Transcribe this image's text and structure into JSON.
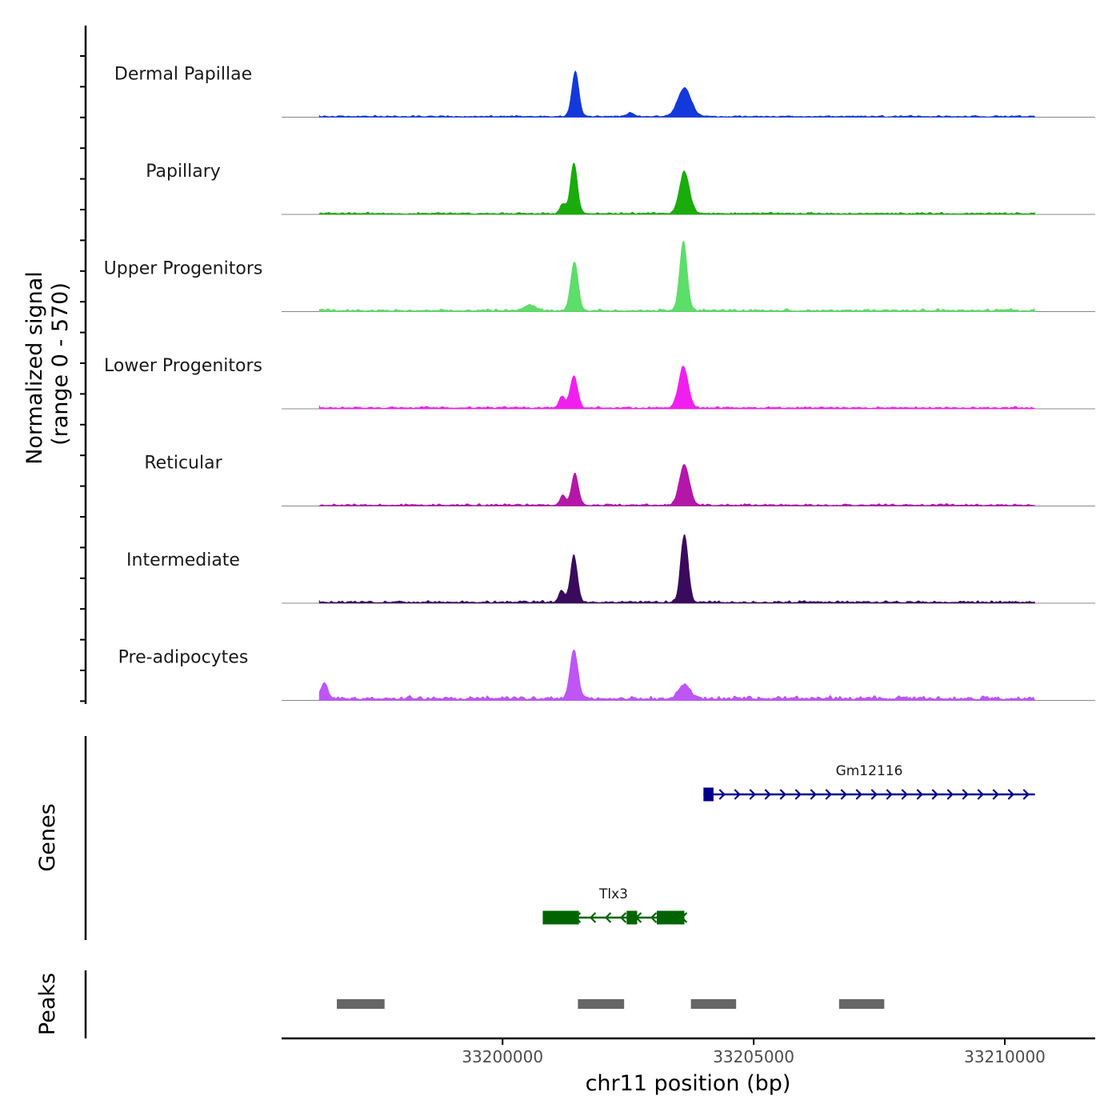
{
  "chart_data": {
    "type": "area",
    "title": "",
    "xlabel": "chr11 position (bp)",
    "ylabel_lines": [
      "Normalized signal",
      "(range 0 - 570)"
    ],
    "xlim": [
      33195600,
      33211800
    ],
    "x_ticks": [
      33200000,
      33205000,
      33210000
    ],
    "x_tick_labels": [
      "33200000",
      "33205000",
      "33210000"
    ],
    "signal_range": [
      0,
      570
    ],
    "tracks": [
      {
        "name": "Dermal Papillae",
        "color": "#1339dc",
        "peaks": [
          {
            "pos": 33201450,
            "h": 0.97,
            "w": 70
          },
          {
            "pos": 33203620,
            "h": 0.62,
            "w": 130
          },
          {
            "pos": 33202550,
            "h": 0.08,
            "w": 80
          }
        ],
        "baseline": 0.05,
        "noise_seed": 11
      },
      {
        "name": "Papillary",
        "color": "#1aab0c",
        "peaks": [
          {
            "pos": 33201420,
            "h": 1.1,
            "w": 70
          },
          {
            "pos": 33203620,
            "h": 0.9,
            "w": 100
          },
          {
            "pos": 33201200,
            "h": 0.2,
            "w": 60
          }
        ],
        "baseline": 0.06,
        "noise_seed": 23
      },
      {
        "name": "Upper Progenitors",
        "color": "#5ddd6a",
        "peaks": [
          {
            "pos": 33201430,
            "h": 1.05,
            "w": 75
          },
          {
            "pos": 33203600,
            "h": 1.5,
            "w": 75
          },
          {
            "pos": 33200550,
            "h": 0.12,
            "w": 120
          }
        ],
        "baseline": 0.07,
        "noise_seed": 37
      },
      {
        "name": "Lower Progenitors",
        "color": "#f01ff0",
        "peaks": [
          {
            "pos": 33201420,
            "h": 0.7,
            "w": 75
          },
          {
            "pos": 33203600,
            "h": 0.9,
            "w": 95
          },
          {
            "pos": 33201180,
            "h": 0.25,
            "w": 60
          }
        ],
        "baseline": 0.06,
        "noise_seed": 41
      },
      {
        "name": "Reticular",
        "color": "#b416a8",
        "peaks": [
          {
            "pos": 33201440,
            "h": 0.68,
            "w": 70
          },
          {
            "pos": 33203620,
            "h": 0.88,
            "w": 100
          },
          {
            "pos": 33201200,
            "h": 0.2,
            "w": 60
          }
        ],
        "baseline": 0.06,
        "noise_seed": 53
      },
      {
        "name": "Intermediate",
        "color": "#3a0a5c",
        "peaks": [
          {
            "pos": 33201420,
            "h": 1.0,
            "w": 70
          },
          {
            "pos": 33203620,
            "h": 1.45,
            "w": 75
          },
          {
            "pos": 33201180,
            "h": 0.25,
            "w": 60
          }
        ],
        "baseline": 0.07,
        "noise_seed": 67
      },
      {
        "name": "Pre-adipocytes",
        "color": "#bd56f5",
        "peaks": [
          {
            "pos": 33201420,
            "h": 1.05,
            "w": 80
          },
          {
            "pos": 33196450,
            "h": 0.35,
            "w": 70
          },
          {
            "pos": 33203620,
            "h": 0.3,
            "w": 120
          }
        ],
        "baseline": 0.12,
        "noise_seed": 79
      }
    ],
    "signal_span": [
      33196350,
      33210600
    ],
    "genes_track_label": "Genes",
    "genes": [
      {
        "name": "Gm12116",
        "strand": "+",
        "color": "#00008b",
        "start": 33204000,
        "end": 33210600,
        "exons": [
          [
            33204000,
            33204200
          ]
        ],
        "row": 1
      },
      {
        "name": "Tlx3",
        "strand": "-",
        "color": "#006400",
        "start": 33200800,
        "end": 33203620,
        "exons": [
          [
            33200800,
            33201520
          ],
          [
            33202470,
            33202680
          ],
          [
            33203070,
            33203620
          ]
        ],
        "row": 2
      }
    ],
    "peaks_track_label": "Peaks",
    "peak_regions": [
      [
        33196700,
        33197650
      ],
      [
        33201500,
        33202420
      ],
      [
        33203750,
        33204650
      ],
      [
        33206700,
        33207600
      ]
    ],
    "peak_color": "#666666"
  }
}
